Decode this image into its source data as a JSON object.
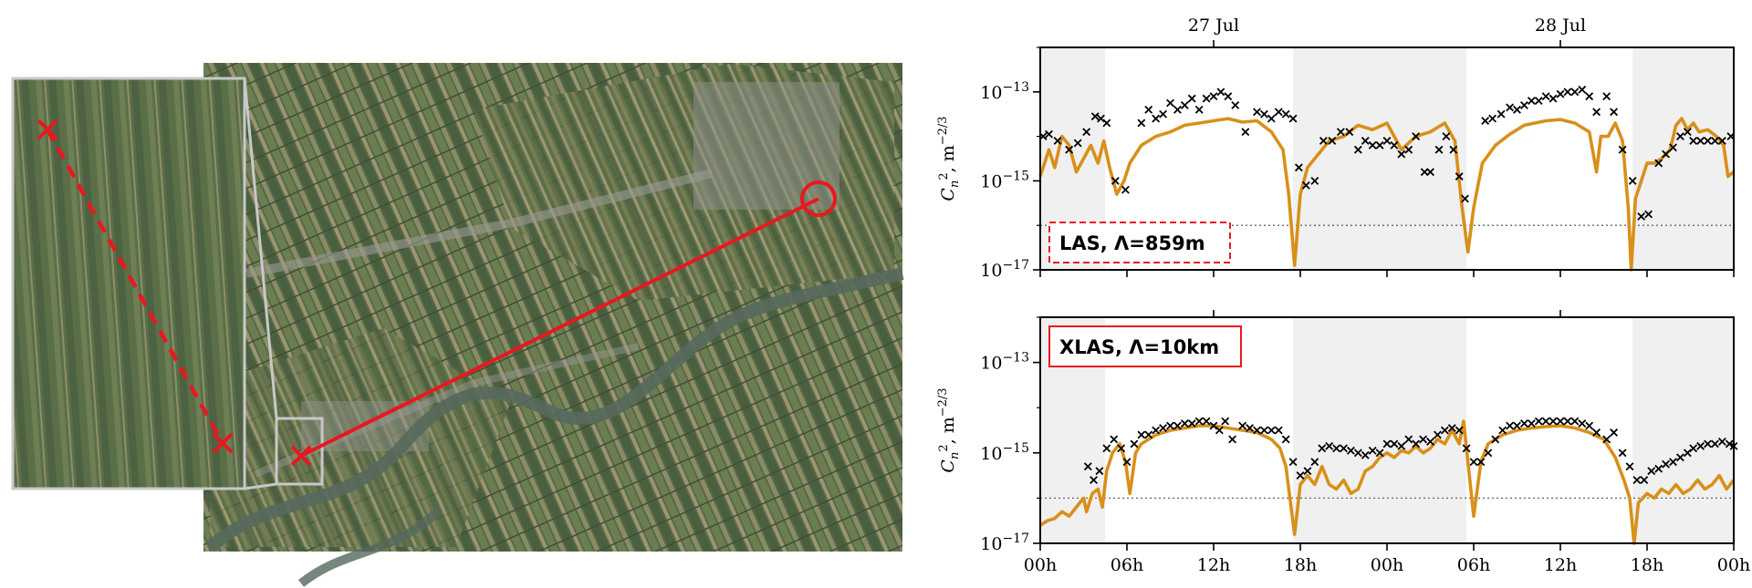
{
  "map": {
    "colors": {
      "path": "#e8181e",
      "inset_frame": "#c8c8c8",
      "fields_dark": "#4d5e3e",
      "fields_light": "#8c8a68",
      "river": "#56695c"
    }
  },
  "chart_data": [
    {
      "type": "line",
      "panel": "top",
      "legend": "LAS, Λ=859m",
      "legend_style": "dashed",
      "ylabel": "C_n^2, m^-2/3",
      "yscale": "log",
      "ylim_log10": [
        -17,
        -12
      ],
      "yticks": [
        "10^-13",
        "10^-15",
        "10^-17"
      ],
      "ytick_values_log10": [
        -13,
        -15,
        -17
      ],
      "top_date_labels": [
        "27 Jul",
        "28 Jul"
      ],
      "top_date_hours": [
        12,
        36
      ],
      "xlim_hours": [
        0,
        48
      ],
      "threshold_log10": -16.0,
      "night_bands_hours": [
        [
          0,
          4.5
        ],
        [
          17.5,
          29.5
        ],
        [
          41,
          48
        ]
      ],
      "model_log10": [
        [
          0,
          -14.9
        ],
        [
          0.6,
          -14.3
        ],
        [
          1,
          -14.7
        ],
        [
          1.5,
          -14.0
        ],
        [
          2,
          -14.2
        ],
        [
          2.5,
          -14.8
        ],
        [
          3,
          -14.5
        ],
        [
          3.5,
          -14.2
        ],
        [
          4,
          -14.6
        ],
        [
          4.4,
          -14.1
        ],
        [
          4.8,
          -14.7
        ],
        [
          5.3,
          -15.3
        ],
        [
          5.8,
          -15.0
        ],
        [
          6.2,
          -14.6
        ],
        [
          7,
          -14.2
        ],
        [
          8,
          -14.0
        ],
        [
          9,
          -13.9
        ],
        [
          10,
          -13.75
        ],
        [
          11,
          -13.7
        ],
        [
          12,
          -13.65
        ],
        [
          13,
          -13.6
        ],
        [
          14,
          -13.68
        ],
        [
          15,
          -13.65
        ],
        [
          16,
          -13.9
        ],
        [
          16.8,
          -14.3
        ],
        [
          17.2,
          -15.3
        ],
        [
          17.6,
          -16.9
        ],
        [
          18,
          -15.3
        ],
        [
          18.5,
          -14.7
        ],
        [
          19,
          -14.5
        ],
        [
          20,
          -14.1
        ],
        [
          21,
          -14.0
        ],
        [
          22,
          -13.75
        ],
        [
          23,
          -13.85
        ],
        [
          24,
          -13.7
        ],
        [
          25,
          -14.3
        ],
        [
          26,
          -14.0
        ],
        [
          27,
          -13.9
        ],
        [
          28,
          -13.7
        ],
        [
          28.7,
          -14.1
        ],
        [
          29.2,
          -15.6
        ],
        [
          29.6,
          -16.6
        ],
        [
          30,
          -15.6
        ],
        [
          30.6,
          -14.6
        ],
        [
          31.5,
          -14.2
        ],
        [
          32.5,
          -13.95
        ],
        [
          33.5,
          -13.75
        ],
        [
          35,
          -13.65
        ],
        [
          36,
          -13.62
        ],
        [
          37,
          -13.7
        ],
        [
          38,
          -13.9
        ],
        [
          38.5,
          -14.8
        ],
        [
          38.8,
          -14.0
        ],
        [
          39.3,
          -14.0
        ],
        [
          39.8,
          -13.7
        ],
        [
          40.3,
          -14.1
        ],
        [
          40.7,
          -15.6
        ],
        [
          40.9,
          -17.0
        ],
        [
          41.2,
          -15.4
        ],
        [
          41.6,
          -15.0
        ],
        [
          42,
          -14.6
        ],
        [
          42.5,
          -14.6
        ],
        [
          43,
          -14.5
        ],
        [
          43.6,
          -14.3
        ],
        [
          44,
          -13.75
        ],
        [
          44.4,
          -13.6
        ],
        [
          44.8,
          -13.85
        ],
        [
          45.2,
          -13.7
        ],
        [
          45.6,
          -13.9
        ],
        [
          46.2,
          -13.85
        ],
        [
          46.8,
          -14.0
        ],
        [
          47.3,
          -14.2
        ],
        [
          47.6,
          -14.9
        ],
        [
          48,
          -14.8
        ]
      ],
      "obs_log10": [
        [
          0.2,
          -14.0
        ],
        [
          0.6,
          -13.95
        ],
        [
          1.2,
          -14.1
        ],
        [
          2,
          -14.3
        ],
        [
          2.6,
          -14.15
        ],
        [
          3.2,
          -13.9
        ],
        [
          3.8,
          -13.55
        ],
        [
          4.2,
          -13.6
        ],
        [
          4.6,
          -13.7
        ],
        [
          5.2,
          -15.0
        ],
        [
          5.9,
          -15.2
        ],
        [
          7,
          -13.7
        ],
        [
          7.5,
          -13.4
        ],
        [
          8,
          -13.6
        ],
        [
          8.5,
          -13.5
        ],
        [
          9,
          -13.25
        ],
        [
          9.5,
          -13.4
        ],
        [
          10,
          -13.3
        ],
        [
          10.5,
          -13.15
        ],
        [
          11,
          -13.4
        ],
        [
          11.5,
          -13.15
        ],
        [
          12,
          -13.1
        ],
        [
          12.5,
          -13.0
        ],
        [
          13,
          -13.1
        ],
        [
          13.5,
          -13.3
        ],
        [
          14.2,
          -13.9
        ],
        [
          15,
          -13.45
        ],
        [
          15.5,
          -13.5
        ],
        [
          16,
          -13.6
        ],
        [
          16.5,
          -13.45
        ],
        [
          17,
          -13.5
        ],
        [
          17.5,
          -13.6
        ],
        [
          17.9,
          -14.7
        ],
        [
          18.4,
          -15.1
        ],
        [
          19,
          -15.0
        ],
        [
          19.6,
          -14.1
        ],
        [
          20.2,
          -14.1
        ],
        [
          20.8,
          -13.9
        ],
        [
          21.4,
          -13.9
        ],
        [
          22,
          -14.3
        ],
        [
          22.5,
          -14.1
        ],
        [
          23,
          -14.2
        ],
        [
          23.5,
          -14.2
        ],
        [
          24,
          -14.1
        ],
        [
          24.5,
          -14.2
        ],
        [
          25,
          -14.4
        ],
        [
          25.5,
          -14.3
        ],
        [
          26,
          -14.0
        ],
        [
          26.6,
          -14.8
        ],
        [
          27,
          -14.8
        ],
        [
          27.6,
          -14.3
        ],
        [
          28.1,
          -14.0
        ],
        [
          28.6,
          -14.3
        ],
        [
          29,
          -14.9
        ],
        [
          29.4,
          -15.4
        ],
        [
          30.8,
          -13.65
        ],
        [
          31.3,
          -13.6
        ],
        [
          31.9,
          -13.5
        ],
        [
          32.5,
          -13.35
        ],
        [
          33,
          -13.4
        ],
        [
          33.5,
          -13.3
        ],
        [
          34,
          -13.2
        ],
        [
          34.5,
          -13.2
        ],
        [
          35,
          -13.1
        ],
        [
          35.5,
          -13.15
        ],
        [
          36,
          -13.05
        ],
        [
          36.5,
          -13.0
        ],
        [
          37,
          -13.0
        ],
        [
          37.5,
          -12.95
        ],
        [
          38,
          -13.1
        ],
        [
          38.5,
          -13.45
        ],
        [
          39.2,
          -13.1
        ],
        [
          39.7,
          -13.45
        ],
        [
          40.3,
          -14.3
        ],
        [
          41,
          -15.0
        ],
        [
          41.6,
          -15.8
        ],
        [
          42.1,
          -15.75
        ],
        [
          42.8,
          -14.6
        ],
        [
          43.3,
          -14.4
        ],
        [
          43.8,
          -14.25
        ],
        [
          44.3,
          -14.0
        ],
        [
          44.8,
          -13.9
        ],
        [
          45.2,
          -14.1
        ],
        [
          45.7,
          -14.1
        ],
        [
          46.2,
          -14.1
        ],
        [
          46.7,
          -14.1
        ],
        [
          47.2,
          -14.1
        ],
        [
          47.8,
          -14.0
        ]
      ]
    },
    {
      "type": "line",
      "panel": "bottom",
      "legend": "XLAS, Λ=10km",
      "legend_style": "solid",
      "ylabel": "C_n^2, m^-2/3",
      "yscale": "log",
      "ylim_log10": [
        -17,
        -12
      ],
      "yticks": [
        "10^-13",
        "10^-15",
        "10^-17"
      ],
      "ytick_values_log10": [
        -13,
        -15,
        -17
      ],
      "xticks": [
        "00h",
        "06h",
        "12h",
        "18h",
        "00h",
        "06h",
        "12h",
        "18h",
        "00h"
      ],
      "xtick_hours": [
        0,
        6,
        12,
        18,
        24,
        30,
        36,
        42,
        48
      ],
      "xlim_hours": [
        0,
        48
      ],
      "threshold_log10": -16.0,
      "night_bands_hours": [
        [
          0,
          4.5
        ],
        [
          17.5,
          29.5
        ],
        [
          41,
          48
        ]
      ],
      "model_log10": [
        [
          0,
          -16.6
        ],
        [
          0.5,
          -16.5
        ],
        [
          1,
          -16.45
        ],
        [
          1.5,
          -16.3
        ],
        [
          2,
          -16.4
        ],
        [
          2.5,
          -16.2
        ],
        [
          3,
          -16.0
        ],
        [
          3.2,
          -16.3
        ],
        [
          3.6,
          -15.9
        ],
        [
          4,
          -15.8
        ],
        [
          4.3,
          -16.2
        ],
        [
          4.6,
          -15.4
        ],
        [
          5,
          -15.0
        ],
        [
          5.5,
          -14.8
        ],
        [
          5.9,
          -15.2
        ],
        [
          6.2,
          -15.9
        ],
        [
          6.6,
          -15.0
        ],
        [
          7,
          -14.8
        ],
        [
          8,
          -14.6
        ],
        [
          9,
          -14.5
        ],
        [
          10,
          -14.45
        ],
        [
          11,
          -14.4
        ],
        [
          12,
          -14.4
        ],
        [
          13,
          -14.45
        ],
        [
          14,
          -14.5
        ],
        [
          15,
          -14.55
        ],
        [
          16,
          -14.7
        ],
        [
          16.6,
          -14.9
        ],
        [
          17,
          -15.3
        ],
        [
          17.6,
          -16.8
        ],
        [
          18,
          -15.7
        ],
        [
          18.5,
          -15.5
        ],
        [
          19,
          -15.7
        ],
        [
          19.5,
          -15.3
        ],
        [
          20,
          -15.7
        ],
        [
          20.5,
          -15.8
        ],
        [
          21,
          -15.6
        ],
        [
          21.5,
          -15.9
        ],
        [
          22,
          -15.8
        ],
        [
          22.5,
          -15.4
        ],
        [
          23,
          -15.3
        ],
        [
          23.5,
          -15.1
        ],
        [
          24,
          -15.0
        ],
        [
          24.5,
          -15.1
        ],
        [
          25,
          -14.95
        ],
        [
          25.5,
          -15.0
        ],
        [
          26,
          -14.85
        ],
        [
          26.5,
          -15.0
        ],
        [
          27,
          -14.9
        ],
        [
          27.5,
          -14.7
        ],
        [
          28,
          -14.8
        ],
        [
          28.5,
          -14.5
        ],
        [
          29,
          -14.8
        ],
        [
          29.3,
          -14.3
        ],
        [
          29.6,
          -15.2
        ],
        [
          30,
          -16.4
        ],
        [
          30.5,
          -15.2
        ],
        [
          31,
          -14.8
        ],
        [
          32,
          -14.6
        ],
        [
          33,
          -14.5
        ],
        [
          34,
          -14.45
        ],
        [
          35,
          -14.42
        ],
        [
          36,
          -14.4
        ],
        [
          37,
          -14.45
        ],
        [
          38,
          -14.55
        ],
        [
          39,
          -14.7
        ],
        [
          39.8,
          -15.1
        ],
        [
          40.4,
          -15.6
        ],
        [
          40.8,
          -16.0
        ],
        [
          41.1,
          -17.0
        ],
        [
          41.4,
          -16.1
        ],
        [
          42,
          -15.9
        ],
        [
          42.5,
          -16.0
        ],
        [
          43,
          -15.8
        ],
        [
          43.5,
          -15.9
        ],
        [
          44,
          -15.7
        ],
        [
          44.5,
          -15.9
        ],
        [
          45,
          -15.8
        ],
        [
          45.5,
          -15.6
        ],
        [
          46,
          -15.8
        ],
        [
          46.5,
          -15.7
        ],
        [
          47,
          -15.5
        ],
        [
          47.5,
          -15.8
        ],
        [
          48,
          -15.6
        ]
      ],
      "obs_log10": [
        [
          3.3,
          -15.3
        ],
        [
          3.7,
          -15.6
        ],
        [
          4.1,
          -15.4
        ],
        [
          4.6,
          -14.9
        ],
        [
          5.1,
          -14.7
        ],
        [
          5.6,
          -14.9
        ],
        [
          6,
          -15.2
        ],
        [
          6.5,
          -14.8
        ],
        [
          7,
          -14.6
        ],
        [
          7.5,
          -14.6
        ],
        [
          8,
          -14.5
        ],
        [
          8.5,
          -14.45
        ],
        [
          9,
          -14.4
        ],
        [
          9.5,
          -14.4
        ],
        [
          10,
          -14.35
        ],
        [
          10.5,
          -14.35
        ],
        [
          11,
          -14.3
        ],
        [
          11.5,
          -14.3
        ],
        [
          12,
          -14.4
        ],
        [
          12.4,
          -14.5
        ],
        [
          12.8,
          -14.3
        ],
        [
          13.3,
          -14.7
        ],
        [
          14,
          -14.4
        ],
        [
          14.5,
          -14.45
        ],
        [
          15,
          -14.5
        ],
        [
          15.5,
          -14.5
        ],
        [
          16,
          -14.5
        ],
        [
          16.5,
          -14.5
        ],
        [
          17,
          -14.7
        ],
        [
          17.5,
          -15.2
        ],
        [
          18,
          -15.5
        ],
        [
          18.5,
          -15.4
        ],
        [
          19,
          -15.2
        ],
        [
          19.5,
          -14.9
        ],
        [
          20,
          -14.85
        ],
        [
          20.5,
          -14.9
        ],
        [
          21,
          -14.9
        ],
        [
          21.5,
          -14.95
        ],
        [
          22,
          -15.0
        ],
        [
          22.5,
          -15.05
        ],
        [
          23,
          -14.95
        ],
        [
          23.5,
          -15.0
        ],
        [
          24,
          -14.8
        ],
        [
          24.5,
          -14.8
        ],
        [
          25,
          -14.85
        ],
        [
          25.5,
          -14.7
        ],
        [
          26,
          -14.8
        ],
        [
          26.5,
          -14.7
        ],
        [
          27,
          -14.75
        ],
        [
          27.5,
          -14.6
        ],
        [
          28,
          -14.5
        ],
        [
          28.5,
          -14.45
        ],
        [
          29,
          -14.5
        ],
        [
          29.5,
          -14.9
        ],
        [
          30,
          -15.2
        ],
        [
          30.5,
          -15.2
        ],
        [
          31,
          -15.0
        ],
        [
          31.5,
          -14.7
        ],
        [
          32,
          -14.5
        ],
        [
          32.5,
          -14.4
        ],
        [
          33,
          -14.4
        ],
        [
          33.5,
          -14.35
        ],
        [
          34,
          -14.35
        ],
        [
          34.5,
          -14.3
        ],
        [
          35,
          -14.3
        ],
        [
          35.5,
          -14.3
        ],
        [
          36,
          -14.3
        ],
        [
          36.5,
          -14.3
        ],
        [
          37,
          -14.3
        ],
        [
          37.5,
          -14.35
        ],
        [
          38,
          -14.4
        ],
        [
          38.5,
          -14.55
        ],
        [
          39.2,
          -14.7
        ],
        [
          39.7,
          -14.55
        ],
        [
          40.3,
          -15.0
        ],
        [
          40.8,
          -15.3
        ],
        [
          41.3,
          -15.6
        ],
        [
          41.8,
          -15.6
        ],
        [
          42.3,
          -15.4
        ],
        [
          42.8,
          -15.35
        ],
        [
          43.3,
          -15.25
        ],
        [
          43.8,
          -15.2
        ],
        [
          44.3,
          -15.1
        ],
        [
          44.8,
          -15.0
        ],
        [
          45.2,
          -14.9
        ],
        [
          45.7,
          -14.85
        ],
        [
          46.2,
          -14.8
        ],
        [
          46.7,
          -14.8
        ],
        [
          47.2,
          -14.75
        ],
        [
          47.7,
          -14.8
        ],
        [
          48,
          -14.85
        ]
      ]
    }
  ]
}
